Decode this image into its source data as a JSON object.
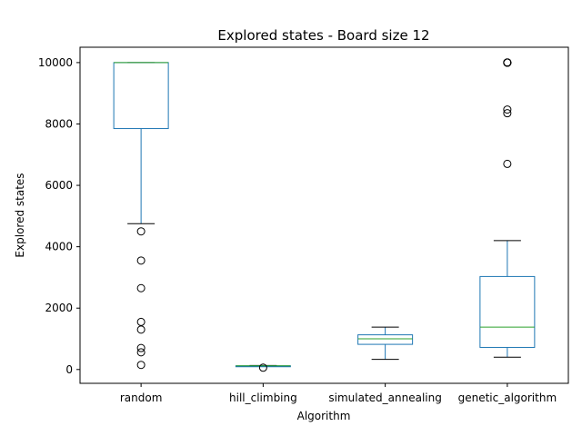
{
  "chart_data": {
    "type": "box",
    "title": "Explored states - Board size 12",
    "xlabel": "Algorithm",
    "ylabel": "Explored states",
    "ylim": [
      -450,
      10500
    ],
    "yticks": [
      0,
      2000,
      4000,
      6000,
      8000,
      10000
    ],
    "grid": false,
    "box_color": "#1f77b4",
    "median_color": "#2ca02c",
    "whisker_color": "#000000",
    "categories": [
      "random",
      "hill_climbing",
      "simulated_annealing",
      "genetic_algorithm"
    ],
    "boxes": [
      {
        "name": "random",
        "whislo": 4750,
        "q1": 7850,
        "med": 10000,
        "q3": 10000,
        "whishi": 10000,
        "fliers": [
          4500,
          3550,
          2650,
          1550,
          1300,
          700,
          560,
          150
        ]
      },
      {
        "name": "hill_climbing",
        "whislo": 110,
        "q1": 110,
        "med": 120,
        "q3": 120,
        "whishi": 130,
        "fliers": [
          60
        ]
      },
      {
        "name": "simulated_annealing",
        "whislo": 330,
        "q1": 820,
        "med": 1000,
        "q3": 1130,
        "whishi": 1380,
        "fliers": []
      },
      {
        "name": "genetic_algorithm",
        "whislo": 400,
        "q1": 720,
        "med": 1380,
        "q3": 3030,
        "whishi": 4200,
        "fliers": [
          10000,
          10000,
          10000,
          10000,
          10000,
          10000,
          10000,
          10000,
          8470,
          8350,
          6700
        ]
      }
    ]
  }
}
